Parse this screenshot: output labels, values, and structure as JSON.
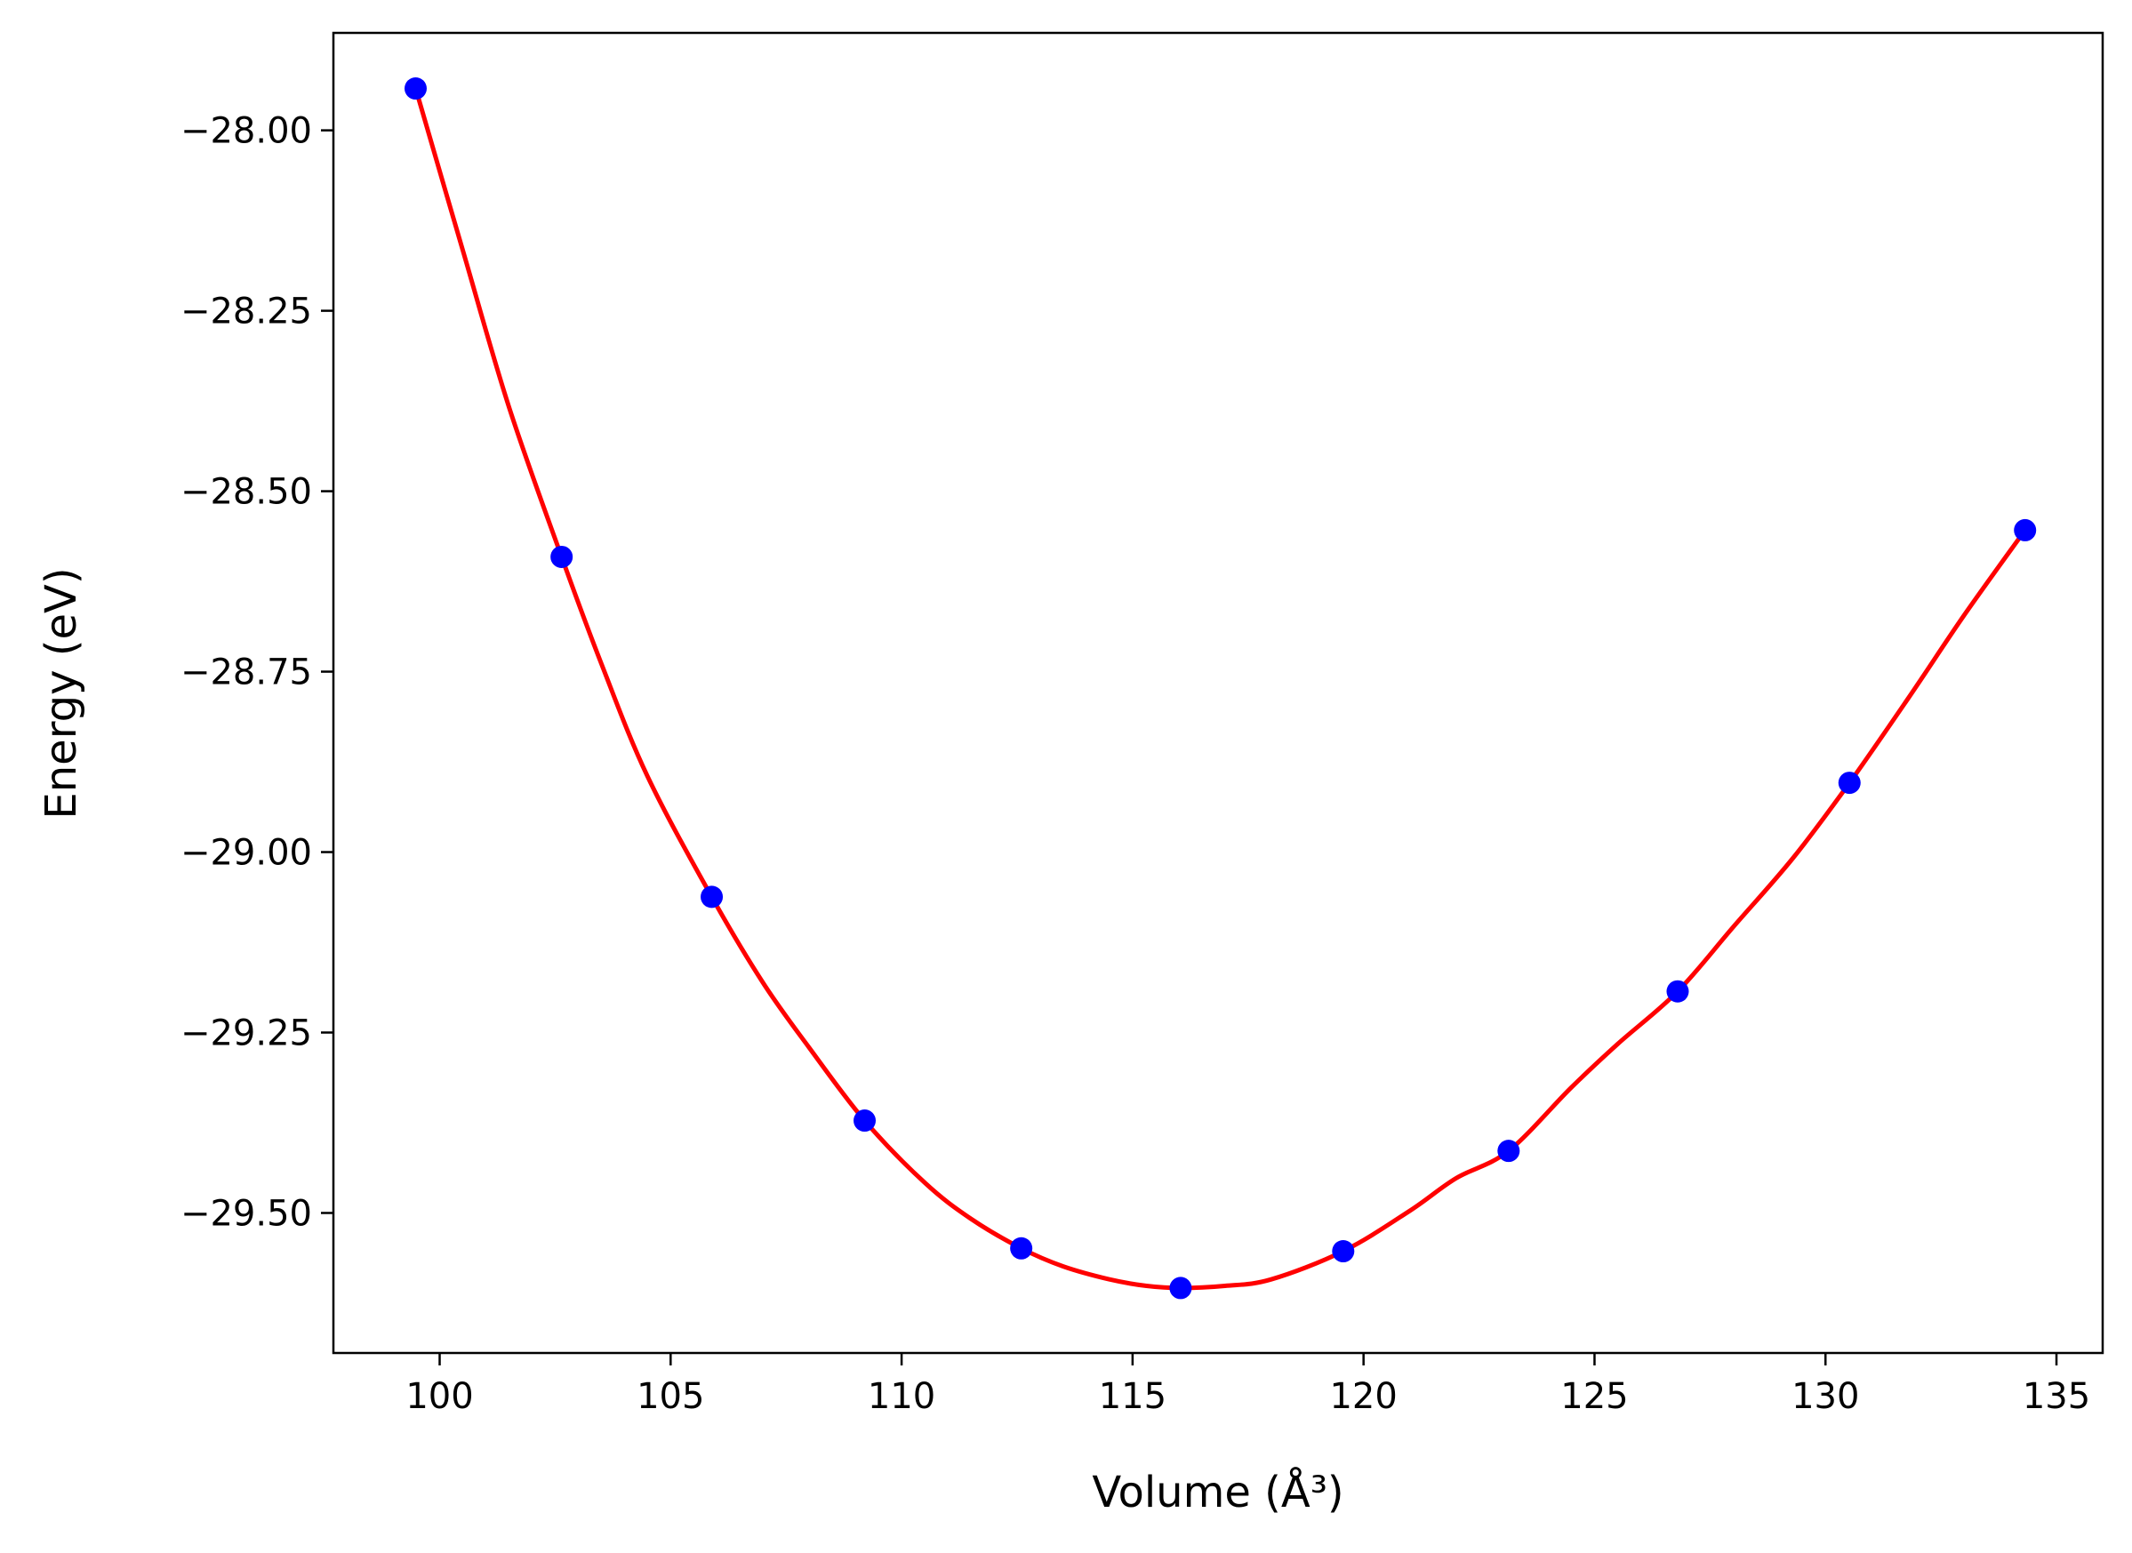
{
  "chart_data": {
    "type": "scatter",
    "xlabel": "Volume (Å³)",
    "ylabel": "Energy (eV)",
    "xlim": [
      97.7,
      136.0
    ],
    "ylim": [
      -29.694,
      -27.865
    ],
    "xticks": [
      100,
      105,
      110,
      115,
      120,
      125,
      130,
      135
    ],
    "xtick_labels": [
      "100",
      "105",
      "110",
      "115",
      "120",
      "125",
      "130",
      "135"
    ],
    "yticks": [
      -28.0,
      -28.25,
      -28.5,
      -28.75,
      -29.0,
      -29.25,
      -29.5
    ],
    "ytick_labels": [
      "−28.00",
      "−28.25",
      "−28.50",
      "−28.75",
      "−29.00",
      "−29.25",
      "−29.50"
    ],
    "grid": false,
    "series": [
      {
        "kind": "points",
        "color": "#0000ff",
        "x": [
          99.48,
          102.64,
          105.89,
          109.2,
          112.59,
          116.04,
          119.56,
          123.14,
          126.8,
          130.52,
          134.32
        ],
        "y": [
          -27.942,
          -28.591,
          -29.062,
          -29.372,
          -29.549,
          -29.604,
          -29.553,
          -29.414,
          -29.193,
          -28.904,
          -28.554
        ]
      },
      {
        "kind": "fit-line",
        "color": "#ff0000",
        "x": [
          99.48,
          100.5,
          101.5,
          102.64,
          103.5,
          104.5,
          105.89,
          107.0,
          108.0,
          109.2,
          110.5,
          111.5,
          112.59,
          113.5,
          114.5,
          115.3,
          116.04,
          117.0,
          118.0,
          119.56,
          121.0,
          122.0,
          123.14,
          124.5,
          125.5,
          126.8,
          128.0,
          129.3,
          130.52,
          131.8,
          133.0,
          134.32
        ],
        "y": [
          -27.942,
          -28.166,
          -28.383,
          -28.591,
          -28.739,
          -28.895,
          -29.062,
          -29.181,
          -29.271,
          -29.372,
          -29.458,
          -29.508,
          -29.549,
          -29.574,
          -29.592,
          -29.601,
          -29.604,
          -29.601,
          -29.592,
          -29.553,
          -29.497,
          -29.452,
          -29.414,
          -29.326,
          -29.266,
          -29.193,
          -29.104,
          -29.008,
          -28.904,
          -28.786,
          -28.672,
          -28.554
        ]
      }
    ]
  }
}
